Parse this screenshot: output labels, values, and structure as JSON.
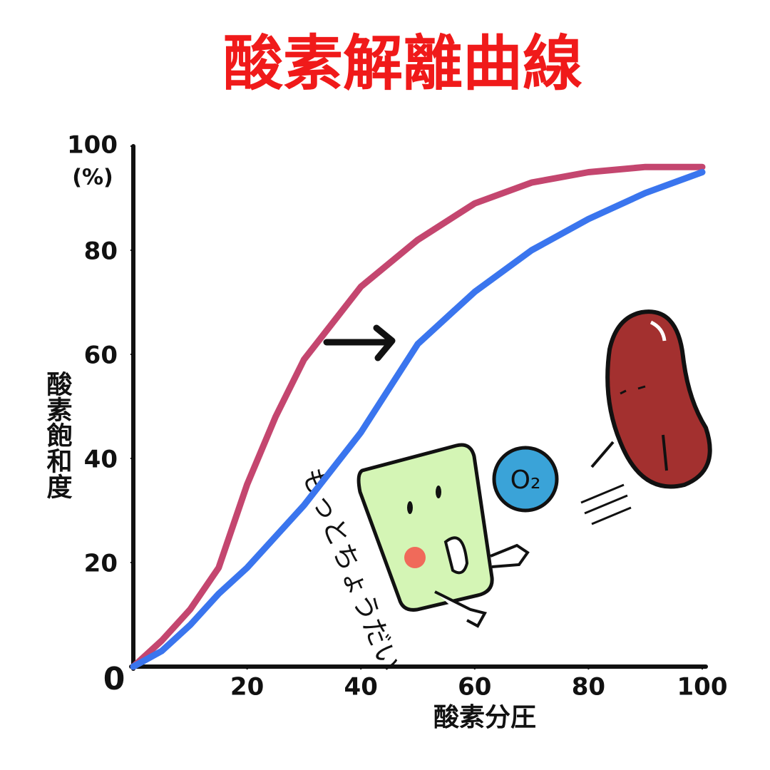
{
  "chart_data": {
    "type": "line",
    "title": "酸素解離曲線",
    "x_label": "酸素分圧",
    "y_label": "酸素飽和度",
    "y_unit": "(%)",
    "annotations": [
      "もっとちょうだい",
      "O₂"
    ],
    "x": [
      0,
      5,
      10,
      15,
      20,
      25,
      30,
      40,
      50,
      60,
      70,
      80,
      90,
      100
    ],
    "series": [
      {
        "color": "#c4466f",
        "values": [
          0,
          5,
          11,
          19,
          35,
          48,
          59,
          73,
          82,
          89,
          93,
          95,
          96,
          96
        ]
      },
      {
        "color": "#3a75ee",
        "values": [
          0,
          3,
          8,
          14,
          19,
          25,
          31,
          45,
          62,
          72,
          80,
          86,
          91,
          95
        ]
      }
    ],
    "xlim": [
      0,
      100
    ],
    "xticks": [
      0,
      20,
      40,
      60,
      80,
      100
    ],
    "ylim": [
      0,
      100
    ],
    "yticks": [
      20,
      40,
      60,
      80,
      100
    ],
    "grid": false
  }
}
